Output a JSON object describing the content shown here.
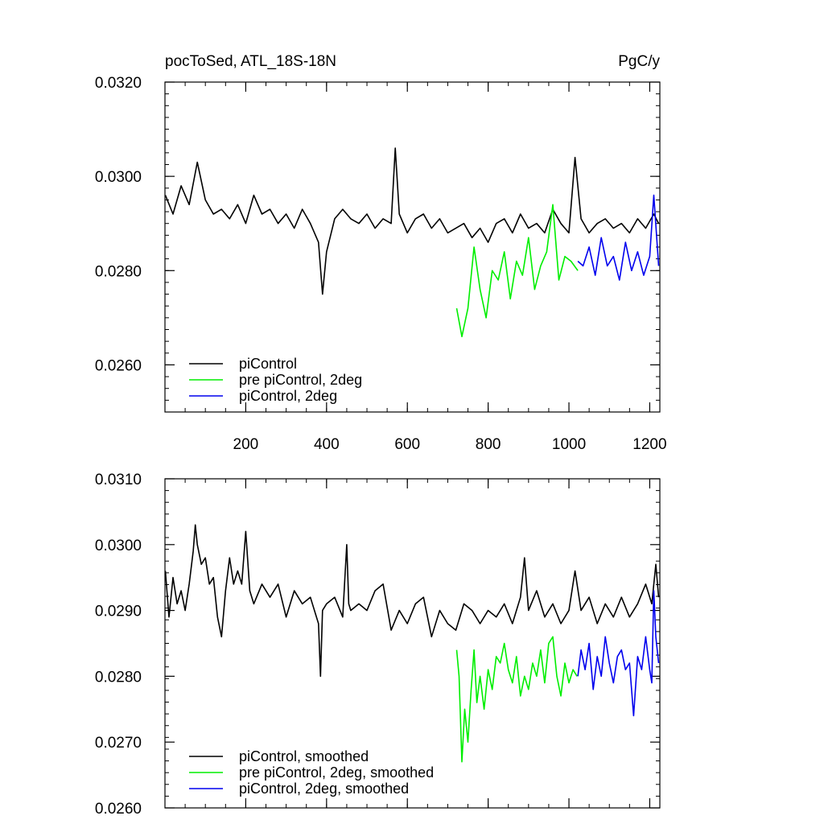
{
  "chart_data": [
    {
      "type": "line",
      "title_left": "pocToSed, ATL_18S-18N",
      "title_right": "PgC/y",
      "xlim": [
        0,
        1225
      ],
      "ylim": [
        0.025,
        0.032
      ],
      "yticks": [
        "0.0320",
        "0.0300",
        "0.0280",
        "0.0260"
      ],
      "ytick_values": [
        0.032,
        0.03,
        0.028,
        0.026
      ],
      "xticks": [
        "200",
        "400",
        "600",
        "800",
        "1000",
        "1200"
      ],
      "xtick_values": [
        200,
        400,
        600,
        800,
        1000,
        1200
      ],
      "legend": "bottom-left",
      "series": [
        {
          "name": "piControl",
          "color": "#000000",
          "x": [
            1,
            20,
            40,
            60,
            80,
            100,
            120,
            140,
            160,
            180,
            200,
            220,
            240,
            260,
            280,
            300,
            320,
            340,
            360,
            380,
            390,
            400,
            420,
            440,
            460,
            480,
            500,
            520,
            540,
            560,
            570,
            580,
            600,
            620,
            640,
            660,
            680,
            700,
            720,
            740,
            760,
            780,
            800,
            820,
            840,
            860,
            880,
            900,
            920,
            940,
            960,
            980,
            1000,
            1015,
            1030,
            1050,
            1070,
            1090,
            1110,
            1130,
            1150,
            1170,
            1190,
            1210,
            1222
          ],
          "y": [
            0.0296,
            0.0292,
            0.0298,
            0.0294,
            0.0303,
            0.0295,
            0.0292,
            0.0293,
            0.0291,
            0.0294,
            0.029,
            0.0296,
            0.0292,
            0.0293,
            0.029,
            0.0292,
            0.0289,
            0.0293,
            0.029,
            0.0286,
            0.0275,
            0.0284,
            0.0291,
            0.0293,
            0.0291,
            0.029,
            0.0292,
            0.0289,
            0.0291,
            0.029,
            0.0306,
            0.0292,
            0.0288,
            0.0291,
            0.0292,
            0.0289,
            0.0291,
            0.0288,
            0.0289,
            0.029,
            0.0287,
            0.0289,
            0.0286,
            0.029,
            0.0291,
            0.0288,
            0.0292,
            0.0289,
            0.029,
            0.0288,
            0.0293,
            0.029,
            0.0288,
            0.0304,
            0.0291,
            0.0288,
            0.029,
            0.0291,
            0.0289,
            0.029,
            0.0288,
            0.0291,
            0.0289,
            0.0292,
            0.029
          ]
        },
        {
          "name": "pre piControl, 2deg",
          "color": "#00ee00",
          "x": [
            722,
            735,
            750,
            765,
            780,
            795,
            810,
            825,
            840,
            855,
            870,
            885,
            900,
            915,
            930,
            945,
            960,
            975,
            990,
            1005,
            1022
          ],
          "y": [
            0.0272,
            0.0266,
            0.0272,
            0.0285,
            0.0276,
            0.027,
            0.028,
            0.0278,
            0.0284,
            0.0274,
            0.0282,
            0.0279,
            0.0287,
            0.0276,
            0.0281,
            0.0284,
            0.0294,
            0.0278,
            0.0283,
            0.0282,
            0.028
          ]
        },
        {
          "name": "piControl, 2deg",
          "color": "#0000ee",
          "x": [
            1022,
            1035,
            1050,
            1065,
            1080,
            1095,
            1110,
            1125,
            1140,
            1155,
            1170,
            1185,
            1200,
            1210,
            1222
          ],
          "y": [
            0.0282,
            0.0281,
            0.0285,
            0.0279,
            0.0287,
            0.0281,
            0.0283,
            0.0278,
            0.0286,
            0.028,
            0.0284,
            0.0279,
            0.0283,
            0.0296,
            0.0281
          ]
        }
      ]
    },
    {
      "type": "line",
      "xlim": [
        0,
        1225
      ],
      "ylim": [
        0.026,
        0.031
      ],
      "yticks": [
        "0.0310",
        "0.0300",
        "0.0290",
        "0.0280",
        "0.0270",
        "0.0260"
      ],
      "ytick_values": [
        0.031,
        0.03,
        0.029,
        0.028,
        0.027,
        0.026
      ],
      "xtick_values": [
        200,
        400,
        600,
        800,
        1000,
        1200
      ],
      "legend": "bottom-left",
      "series": [
        {
          "name": "piControl, smoothed",
          "color": "#000000",
          "x": [
            1,
            10,
            20,
            30,
            40,
            50,
            60,
            70,
            75,
            80,
            90,
            100,
            110,
            120,
            130,
            140,
            150,
            160,
            170,
            180,
            190,
            200,
            210,
            220,
            240,
            260,
            280,
            300,
            320,
            340,
            360,
            380,
            385,
            390,
            400,
            420,
            440,
            450,
            455,
            460,
            480,
            500,
            520,
            540,
            560,
            580,
            600,
            620,
            640,
            660,
            680,
            700,
            720,
            740,
            760,
            780,
            800,
            820,
            840,
            860,
            880,
            890,
            900,
            920,
            940,
            960,
            980,
            1000,
            1015,
            1030,
            1050,
            1070,
            1090,
            1110,
            1130,
            1150,
            1170,
            1190,
            1205,
            1215,
            1222
          ],
          "y": [
            0.0296,
            0.0289,
            0.0295,
            0.0291,
            0.0293,
            0.029,
            0.0294,
            0.0299,
            0.0303,
            0.03,
            0.0297,
            0.0298,
            0.0294,
            0.0295,
            0.0289,
            0.0286,
            0.0293,
            0.0298,
            0.0294,
            0.0296,
            0.0294,
            0.0302,
            0.0293,
            0.0291,
            0.0294,
            0.0292,
            0.0294,
            0.0289,
            0.0293,
            0.0291,
            0.0292,
            0.0288,
            0.028,
            0.029,
            0.0291,
            0.0292,
            0.0289,
            0.03,
            0.0291,
            0.029,
            0.0291,
            0.029,
            0.0293,
            0.0294,
            0.0287,
            0.029,
            0.0288,
            0.0291,
            0.0292,
            0.0286,
            0.029,
            0.0288,
            0.0287,
            0.0291,
            0.029,
            0.0288,
            0.029,
            0.0289,
            0.0291,
            0.0288,
            0.0292,
            0.0298,
            0.029,
            0.0293,
            0.0289,
            0.0291,
            0.0288,
            0.029,
            0.0296,
            0.029,
            0.0292,
            0.0288,
            0.0291,
            0.0289,
            0.0292,
            0.0289,
            0.0291,
            0.0294,
            0.0291,
            0.0297,
            0.0292
          ]
        },
        {
          "name": "pre piControl, 2deg, smoothed",
          "color": "#00ee00",
          "x": [
            722,
            728,
            735,
            742,
            750,
            758,
            765,
            772,
            780,
            790,
            800,
            810,
            820,
            830,
            840,
            850,
            860,
            870,
            880,
            890,
            900,
            910,
            920,
            930,
            940,
            950,
            960,
            970,
            980,
            990,
            1000,
            1010,
            1020
          ],
          "y": [
            0.0284,
            0.028,
            0.0267,
            0.0275,
            0.027,
            0.0278,
            0.0284,
            0.0276,
            0.028,
            0.0275,
            0.0281,
            0.0278,
            0.0283,
            0.0282,
            0.0285,
            0.0281,
            0.0279,
            0.0283,
            0.0277,
            0.028,
            0.0278,
            0.0282,
            0.028,
            0.0284,
            0.0279,
            0.0285,
            0.0286,
            0.028,
            0.0277,
            0.0282,
            0.0279,
            0.0281,
            0.028
          ]
        },
        {
          "name": "piControl, 2deg, smoothed",
          "color": "#0000ee",
          "x": [
            1022,
            1030,
            1040,
            1050,
            1060,
            1070,
            1080,
            1090,
            1100,
            1110,
            1120,
            1130,
            1140,
            1150,
            1160,
            1170,
            1180,
            1190,
            1200,
            1205,
            1210,
            1215,
            1222
          ],
          "y": [
            0.028,
            0.0284,
            0.0281,
            0.0285,
            0.0278,
            0.0283,
            0.028,
            0.0286,
            0.0282,
            0.0279,
            0.0283,
            0.0284,
            0.0281,
            0.0282,
            0.0274,
            0.0283,
            0.0281,
            0.0286,
            0.0281,
            0.0279,
            0.0293,
            0.0286,
            0.0282
          ]
        }
      ]
    }
  ]
}
